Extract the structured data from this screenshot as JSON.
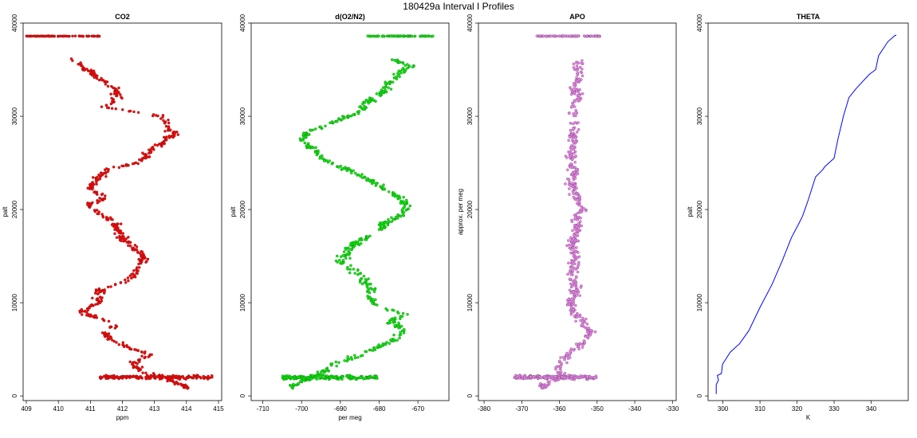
{
  "figure": {
    "title": "180429a   Interval I Profiles"
  },
  "chart_data": [
    {
      "type": "scatter",
      "title": "CO2",
      "xlabel": "ppm",
      "ylabel": "palt",
      "xlim": [
        408.9,
        415.1
      ],
      "ylim": [
        -500,
        40000
      ],
      "xticks": [
        409,
        410,
        411,
        412,
        413,
        414,
        415
      ],
      "yticks": [
        0,
        10000,
        20000,
        30000,
        40000
      ],
      "color": "#ff0000",
      "series": [
        {
          "profile": [
            [
              414.0,
              1000
            ],
            [
              413.3,
              2000
            ],
            [
              412.6,
              2600
            ],
            [
              412.3,
              3500
            ],
            [
              412.9,
              4400
            ],
            [
              412.3,
              5000
            ],
            [
              411.7,
              6000
            ],
            [
              411.4,
              6800
            ],
            [
              411.9,
              7700
            ],
            [
              411.0,
              8600
            ],
            [
              410.7,
              9100
            ],
            [
              411.3,
              10000
            ],
            [
              411.2,
              10800
            ],
            [
              411.4,
              11500
            ],
            [
              412.3,
              12500
            ],
            [
              412.5,
              13800
            ],
            [
              412.7,
              14700
            ],
            [
              412.4,
              15700
            ],
            [
              412.1,
              16600
            ],
            [
              411.9,
              17400
            ],
            [
              411.8,
              18500
            ],
            [
              411.3,
              19500
            ],
            [
              410.9,
              20500
            ],
            [
              411.5,
              21300
            ],
            [
              411.0,
              22300
            ],
            [
              411.2,
              23300
            ],
            [
              411.6,
              24400
            ],
            [
              412.5,
              25000
            ],
            [
              412.8,
              26000
            ],
            [
              413.2,
              27000
            ],
            [
              413.6,
              28000
            ],
            [
              413.4,
              29000
            ],
            [
              413.2,
              30000
            ],
            [
              411.5,
              31000
            ],
            [
              411.8,
              32000
            ],
            [
              411.8,
              33000
            ],
            [
              411.2,
              34200
            ],
            [
              410.9,
              35000
            ],
            [
              410.5,
              36000
            ],
            [
              410.3,
              38600
            ]
          ],
          "flight_level": {
            "y": 2000,
            "xrange": [
              411.3,
              414.8
            ]
          },
          "top_level": {
            "y": 38600,
            "xrange": [
              409.0,
              411.3
            ]
          }
        }
      ]
    },
    {
      "type": "scatter",
      "title": "d(O2/N2)",
      "xlabel": "per meg",
      "ylabel": "palt",
      "xlim": [
        -713,
        -662
      ],
      "ylim": [
        -500,
        40000
      ],
      "xticks": [
        -710,
        -700,
        -690,
        -680,
        -670
      ],
      "yticks": [
        0,
        10000,
        20000,
        30000,
        40000
      ],
      "color": "#00ee00",
      "series": [
        {
          "profile": [
            [
              -702,
              1200
            ],
            [
              -697,
              2000
            ],
            [
              -694,
              2700
            ],
            [
              -690,
              3700
            ],
            [
              -685,
              4400
            ],
            [
              -681,
              5100
            ],
            [
              -676,
              6000
            ],
            [
              -674,
              7100
            ],
            [
              -677,
              8000
            ],
            [
              -673,
              8800
            ],
            [
              -681,
              9600
            ],
            [
              -682,
              10400
            ],
            [
              -682,
              11500
            ],
            [
              -684,
              12400
            ],
            [
              -686,
              13400
            ],
            [
              -690,
              14500
            ],
            [
              -688,
              15500
            ],
            [
              -686,
              16500
            ],
            [
              -680,
              17500
            ],
            [
              -679,
              18400
            ],
            [
              -674,
              19500
            ],
            [
              -673,
              20500
            ],
            [
              -675,
              21500
            ],
            [
              -680,
              22500
            ],
            [
              -684,
              23500
            ],
            [
              -689,
              24400
            ],
            [
              -695,
              25500
            ],
            [
              -697,
              26500
            ],
            [
              -700,
              27500
            ],
            [
              -697,
              28500
            ],
            [
              -691,
              29500
            ],
            [
              -685,
              30500
            ],
            [
              -683,
              31500
            ],
            [
              -679,
              32700
            ],
            [
              -678,
              33500
            ],
            [
              -675,
              34500
            ],
            [
              -672,
              35500
            ],
            [
              -676,
              36000
            ],
            [
              -677,
              38600
            ]
          ],
          "flight_level": {
            "y": 2000,
            "xrange": [
              -705,
              -680
            ]
          },
          "top_level": {
            "y": 38600,
            "xrange": [
              -683,
              -666
            ]
          }
        }
      ]
    },
    {
      "type": "scatter",
      "title": "APO",
      "xlabel": "",
      "ylabel": "approx. per meg",
      "xlim": [
        -381.5,
        -329
      ],
      "ylim": [
        -500,
        40000
      ],
      "xticks": [
        -380,
        -370,
        -360,
        -350,
        -340,
        -330
      ],
      "yticks": [
        0,
        10000,
        20000,
        30000,
        40000
      ],
      "color": "#ee82ee",
      "series": [
        {
          "profile": [
            [
              -364,
              1200
            ],
            [
              -360,
              2000
            ],
            [
              -360,
              3000
            ],
            [
              -359,
              4000
            ],
            [
              -356,
              5000
            ],
            [
              -353,
              6000
            ],
            [
              -352,
              7000
            ],
            [
              -354,
              8000
            ],
            [
              -356,
              9000
            ],
            [
              -357,
              10000
            ],
            [
              -356,
              11000
            ],
            [
              -356,
              12000
            ],
            [
              -357,
              13000
            ],
            [
              -356,
              14000
            ],
            [
              -356,
              15000
            ],
            [
              -357,
              16000
            ],
            [
              -356,
              17000
            ],
            [
              -355,
              18000
            ],
            [
              -356,
              19000
            ],
            [
              -354,
              20000
            ],
            [
              -355,
              21000
            ],
            [
              -356,
              22000
            ],
            [
              -357,
              23000
            ],
            [
              -356,
              24000
            ],
            [
              -357,
              25000
            ],
            [
              -357,
              26000
            ],
            [
              -356,
              27000
            ],
            [
              -357,
              28000
            ],
            [
              -356,
              29000
            ],
            [
              -356,
              30000
            ],
            [
              -356,
              31000
            ],
            [
              -355,
              32000
            ],
            [
              -356,
              33000
            ],
            [
              -355,
              34000
            ],
            [
              -355,
              35000
            ],
            [
              -355,
              36000
            ],
            [
              -360,
              38600
            ]
          ],
          "flight_level": {
            "y": 2000,
            "xrange": [
              -372,
              -350
            ]
          },
          "top_level": {
            "y": 38600,
            "xrange": [
              -366,
              -349
            ]
          }
        }
      ]
    },
    {
      "type": "line",
      "title": "THETA",
      "xlabel": "K",
      "ylabel": "palt",
      "xlim": [
        296,
        350
      ],
      "ylim": [
        -500,
        40000
      ],
      "xticks": [
        300,
        310,
        320,
        330,
        340
      ],
      "yticks": [
        0,
        10000,
        20000,
        30000,
        40000
      ],
      "color": "#0000ff",
      "series": [
        {
          "x": [
            298.2,
            298.2,
            298.8,
            298.5,
            299.6,
            299.9,
            302,
            304.5,
            307,
            310,
            313.3,
            316,
            318.5,
            320.5,
            321.5,
            323,
            325,
            327,
            327.5,
            330,
            331,
            332.5,
            334,
            336,
            339.5,
            341.2,
            342,
            344.5,
            346.5,
            346.8
          ],
          "y": [
            200,
            1200,
            1700,
            2200,
            2400,
            3400,
            4700,
            5600,
            7000,
            9500,
            12000,
            14500,
            17000,
            18500,
            19300,
            21000,
            23500,
            24300,
            24600,
            25500,
            27500,
            30000,
            32000,
            33000,
            34500,
            35000,
            36500,
            38000,
            38700,
            38700
          ]
        }
      ]
    }
  ]
}
